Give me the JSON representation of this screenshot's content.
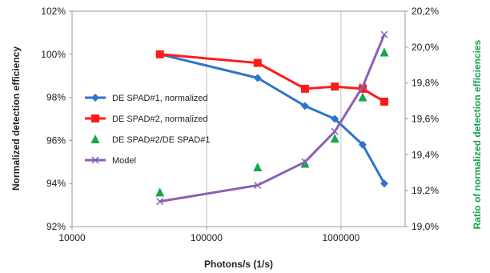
{
  "chart_data": {
    "type": "line",
    "xlabel": "Photons/s (1/s)",
    "ylabel": "Normalized detection efficiency",
    "y2label": "Ratio of normalized detection efficiencies",
    "xscale": "log",
    "xlim": [
      10000,
      3000000
    ],
    "xticks": [
      10000,
      100000,
      1000000
    ],
    "xtick_labels": [
      "10000",
      "100000",
      "1000000"
    ],
    "ylim": [
      92,
      102
    ],
    "yticks": [
      92,
      94,
      96,
      98,
      100,
      102
    ],
    "ytick_labels": [
      "92%",
      "94%",
      "96%",
      "98%",
      "100%",
      "102%"
    ],
    "y2lim": [
      19.0,
      20.2
    ],
    "y2ticks": [
      19.0,
      19.2,
      19.4,
      19.6,
      19.8,
      20.0,
      20.2
    ],
    "y2tick_labels": [
      "19,0%",
      "19,2%",
      "19,4%",
      "19,6%",
      "19,8%",
      "20,0%",
      "20,2%"
    ],
    "grid": "vertical",
    "legend": "center-left",
    "colors": {
      "series1": "#2e75c9",
      "series2": "#ff1a1a",
      "series3": "#13a84a",
      "model": "#8e5fb3",
      "right_axis": "#15a34a",
      "grid": "#bfbfbf"
    },
    "series": [
      {
        "name": "DE SPAD#1, normalized",
        "axis": "left",
        "marker": "diamond",
        "x": [
          45000,
          240000,
          540000,
          900000,
          1450000,
          2100000
        ],
        "y": [
          100.0,
          98.9,
          97.6,
          97.0,
          95.8,
          94.0
        ]
      },
      {
        "name": "DE SPAD#2, normalized",
        "axis": "left",
        "marker": "square",
        "x": [
          45000,
          240000,
          540000,
          900000,
          1450000,
          2100000
        ],
        "y": [
          100.0,
          99.6,
          98.4,
          98.5,
          98.4,
          97.8
        ]
      },
      {
        "name": "DE SPAD#2/DE SPAD#1",
        "axis": "right",
        "marker": "triangle",
        "line": false,
        "x": [
          45000,
          240000,
          540000,
          900000,
          1450000,
          2100000
        ],
        "y": [
          19.19,
          19.33,
          19.35,
          19.49,
          19.72,
          19.97
        ]
      },
      {
        "name": "Model",
        "axis": "right",
        "marker": "x",
        "x": [
          45000,
          240000,
          540000,
          900000,
          1450000,
          2100000
        ],
        "y": [
          19.14,
          19.23,
          19.36,
          19.53,
          19.78,
          20.07
        ]
      }
    ]
  }
}
